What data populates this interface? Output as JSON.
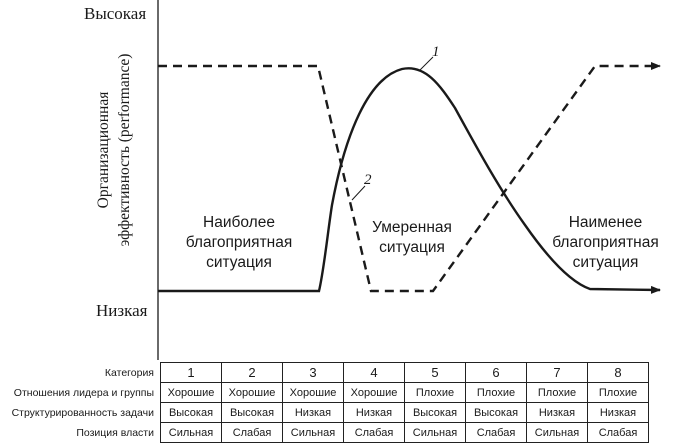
{
  "y_axis": {
    "high": "Высокая",
    "low": "Низкая",
    "title_line1": "Организационная",
    "title_line2": "эффективность (performance)"
  },
  "regions": {
    "best": [
      "Наиболее",
      "благоприятная",
      "ситуация"
    ],
    "moderate": [
      "Умеренная",
      "ситуация"
    ],
    "worst": [
      "Наименее",
      "благоприятная",
      "ситуация"
    ]
  },
  "curve_labels": {
    "solid": "1",
    "dashed": "2"
  },
  "table": {
    "header": "Категория",
    "categories": [
      "1",
      "2",
      "3",
      "4",
      "5",
      "6",
      "7",
      "8"
    ],
    "rows": [
      {
        "label": "Отношения лидера и группы",
        "values": [
          "Хорошие",
          "Хорошие",
          "Хорошие",
          "Хорошие",
          "Плохие",
          "Плохие",
          "Плохие",
          "Плохие"
        ]
      },
      {
        "label": "Структурированность задачи",
        "values": [
          "Высокая",
          "Высокая",
          "Низкая",
          "Низкая",
          "Высокая",
          "Высокая",
          "Низкая",
          "Низкая"
        ]
      },
      {
        "label": "Позиция власти",
        "values": [
          "Сильная",
          "Слабая",
          "Сильная",
          "Слабая",
          "Сильная",
          "Слабая",
          "Сильная",
          "Слабая"
        ]
      }
    ]
  },
  "colors": {
    "ink": "#1a1a1a",
    "background": "#ffffff"
  }
}
